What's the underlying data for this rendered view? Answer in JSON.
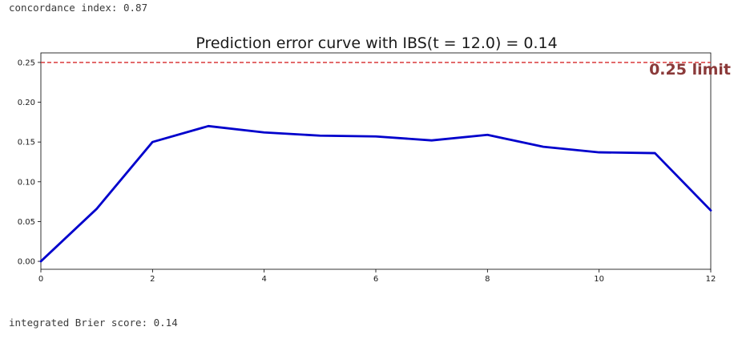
{
  "outputs": {
    "concordance": "concordance index: 0.87",
    "ibs": "integrated Brier score: 0.14"
  },
  "chart_data": {
    "type": "line",
    "title": "Prediction error curve with IBS(t = 12.0) = 0.14",
    "xlabel": "",
    "ylabel": "",
    "xlim": [
      0,
      12
    ],
    "ylim": [
      -0.01,
      0.262
    ],
    "xticks": [
      0,
      2,
      4,
      6,
      8,
      10,
      12
    ],
    "yticks": [
      0.0,
      0.05,
      0.1,
      0.15,
      0.2,
      0.25
    ],
    "ytick_labels": [
      "0.00",
      "0.05",
      "0.10",
      "0.15",
      "0.20",
      "0.25"
    ],
    "xtick_labels": [
      "0",
      "2",
      "4",
      "6",
      "8",
      "10",
      "12"
    ],
    "grid": false,
    "series": [
      {
        "color": "#0000cc",
        "x": [
          0,
          1,
          2,
          3,
          4,
          5,
          6,
          7,
          8,
          9,
          10,
          11,
          12
        ],
        "y": [
          0.0,
          0.066,
          0.15,
          0.17,
          0.162,
          0.158,
          0.157,
          0.152,
          0.159,
          0.144,
          0.137,
          0.136,
          0.064
        ]
      }
    ],
    "reference_line": {
      "y": 0.25,
      "style": "dashed",
      "color": "#d62728",
      "label": "0.25 limit",
      "label_color": "#8b3a3a"
    }
  }
}
